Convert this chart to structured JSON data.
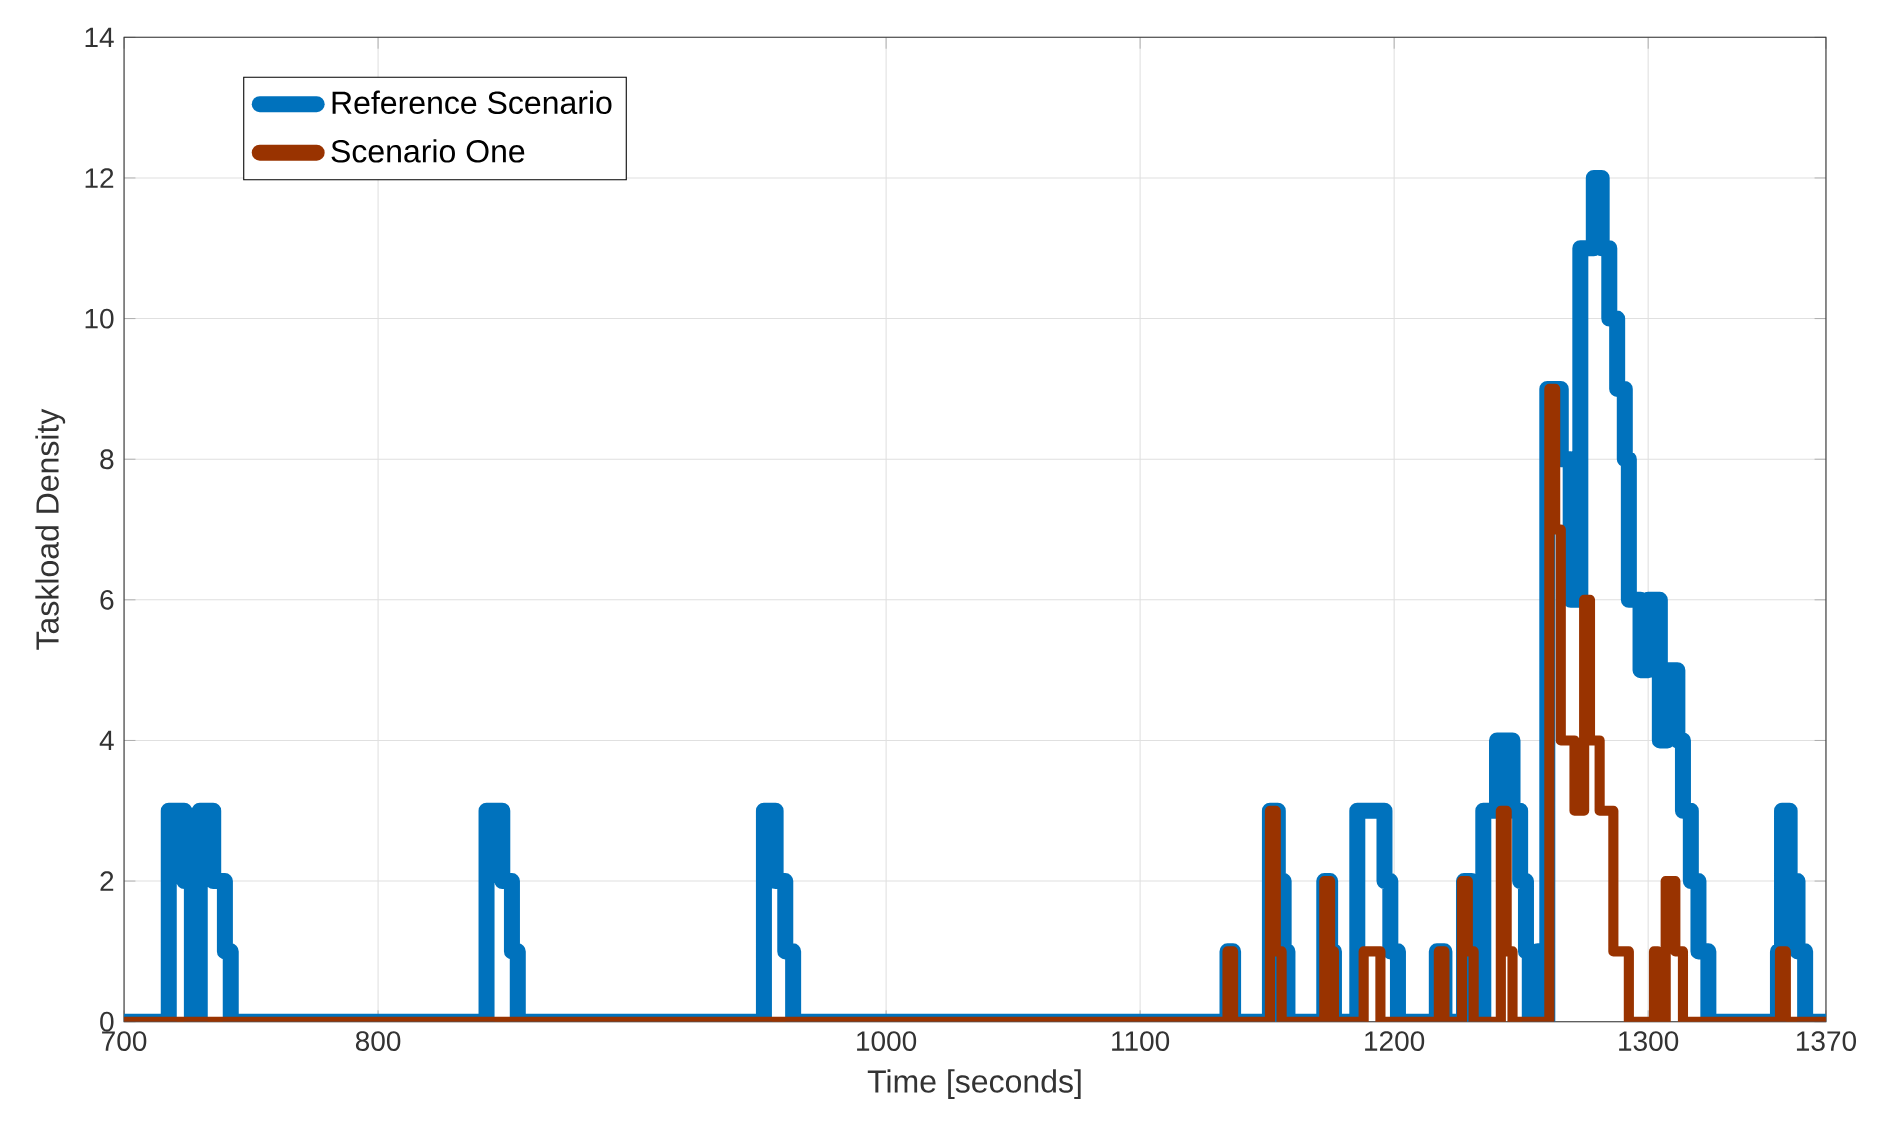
{
  "chart_data": {
    "type": "step",
    "xlabel": "Time [seconds]",
    "ylabel": "Taskload Density",
    "xlim": [
      700,
      1370
    ],
    "xticks": [
      700,
      800,
      1000,
      1100,
      1200,
      1300,
      1370
    ],
    "ylim": [
      0,
      14
    ],
    "yticks": [
      0,
      2,
      4,
      6,
      8,
      10,
      12,
      14
    ],
    "grid": true,
    "legend": "top left",
    "series": [
      {
        "name": "Reference Scenario",
        "color": "#0072bd",
        "x": [
          700,
          717.6,
          723.7,
          726.7,
          729.8,
          735.1,
          739.7,
          742,
          842.7,
          848.9,
          852.7,
          855,
          951.9,
          956.5,
          960.3,
          963.4,
          1134.4,
          1136.6,
          1151.1,
          1154.2,
          1156.5,
          1158,
          1172.5,
          1174.8,
          1176.3,
          1185.5,
          1196.2,
          1198.5,
          1201.5,
          1216.8,
          1219.8,
          1227.5,
          1230.5,
          1232.8,
          1235.1,
          1240.5,
          1246.6,
          1249.6,
          1251.9,
          1253.4,
          1256.5,
          1259.5,
          1260.3,
          1265.6,
          1269.5,
          1273.3,
          1278.6,
          1281.7,
          1284.7,
          1287.8,
          1290.8,
          1292.4,
          1297,
          1300,
          1304.6,
          1307.6,
          1311.5,
          1313.7,
          1316.8,
          1319.8,
          1323.7,
          1351.1,
          1352.7,
          1355.7,
          1358.8,
          1361.8,
          1370
        ],
        "values": [
          0,
          3,
          2,
          0,
          3,
          2,
          1,
          0,
          3,
          2,
          1,
          0,
          3,
          2,
          1,
          0,
          1,
          0,
          3,
          2,
          1,
          0,
          2,
          1,
          0,
          3,
          2,
          1,
          0,
          1,
          0,
          2,
          1,
          0,
          3,
          4,
          3,
          2,
          1,
          0,
          1,
          0,
          9,
          8,
          6,
          11,
          12,
          11,
          10,
          9,
          8,
          6,
          5,
          6,
          4,
          5,
          4,
          3,
          2,
          1,
          0,
          1,
          3,
          2,
          1,
          0,
          0
        ]
      },
      {
        "name": "Scenario One",
        "color": "#993300",
        "x": [
          700,
          1134.4,
          1136.6,
          1151.1,
          1153.4,
          1155.7,
          1172.5,
          1174.8,
          1176.3,
          1188,
          1194.6,
          1217.6,
          1219.8,
          1226.7,
          1229,
          1231.3,
          1242,
          1244.3,
          1246.6,
          1261.1,
          1263.4,
          1265.6,
          1271,
          1274.8,
          1277.1,
          1280.9,
          1286.3,
          1292.4,
          1302.3,
          1303.8,
          1306.9,
          1310.7,
          1313.7,
          1351.9,
          1354.2,
          1370
        ],
        "values": [
          0,
          1,
          0,
          3,
          1,
          0,
          2,
          1,
          0,
          1,
          0,
          1,
          0,
          2,
          1,
          0,
          3,
          1,
          0,
          9,
          7,
          4,
          3,
          6,
          4,
          3,
          1,
          0,
          1,
          0,
          2,
          1,
          0,
          1,
          0,
          0
        ]
      }
    ]
  }
}
